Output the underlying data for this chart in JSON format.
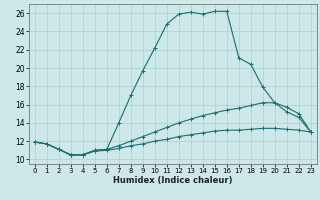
{
  "title": "",
  "xlabel": "Humidex (Indice chaleur)",
  "background_color": "#cce8e8",
  "grid_color": "#aacfcf",
  "line_color": "#1a6e6e",
  "xlim": [
    -0.5,
    23.5
  ],
  "ylim": [
    9.5,
    27.0
  ],
  "xticks": [
    0,
    1,
    2,
    3,
    4,
    5,
    6,
    7,
    8,
    9,
    10,
    11,
    12,
    13,
    14,
    15,
    16,
    17,
    18,
    19,
    20,
    21,
    22,
    23
  ],
  "yticks": [
    10,
    12,
    14,
    16,
    18,
    20,
    22,
    24,
    26
  ],
  "line1_x": [
    0,
    1,
    2,
    3,
    4,
    5,
    6,
    7,
    8,
    9,
    10,
    11,
    12,
    13,
    14,
    15,
    16,
    17,
    18,
    19,
    20,
    21,
    22,
    23
  ],
  "line1_y": [
    11.9,
    11.7,
    11.1,
    10.5,
    10.5,
    11.0,
    11.1,
    14.0,
    17.0,
    19.7,
    22.2,
    24.8,
    25.9,
    26.1,
    25.9,
    26.2,
    26.2,
    21.1,
    20.4,
    17.9,
    16.2,
    15.2,
    14.6,
    13.0
  ],
  "line2_x": [
    0,
    1,
    2,
    3,
    4,
    5,
    6,
    7,
    8,
    9,
    10,
    11,
    12,
    13,
    14,
    15,
    16,
    17,
    18,
    19,
    20,
    21,
    22,
    23
  ],
  "line2_y": [
    11.9,
    11.7,
    11.1,
    10.5,
    10.5,
    11.0,
    11.1,
    11.5,
    12.0,
    12.5,
    13.0,
    13.5,
    14.0,
    14.4,
    14.8,
    15.1,
    15.4,
    15.6,
    15.9,
    16.2,
    16.2,
    15.7,
    15.0,
    13.0
  ],
  "line3_x": [
    0,
    1,
    2,
    3,
    4,
    5,
    6,
    7,
    8,
    9,
    10,
    11,
    12,
    13,
    14,
    15,
    16,
    17,
    18,
    19,
    20,
    21,
    22,
    23
  ],
  "line3_y": [
    11.9,
    11.7,
    11.1,
    10.5,
    10.5,
    10.9,
    11.0,
    11.2,
    11.5,
    11.7,
    12.0,
    12.2,
    12.5,
    12.7,
    12.9,
    13.1,
    13.2,
    13.2,
    13.3,
    13.4,
    13.4,
    13.3,
    13.2,
    13.0
  ]
}
